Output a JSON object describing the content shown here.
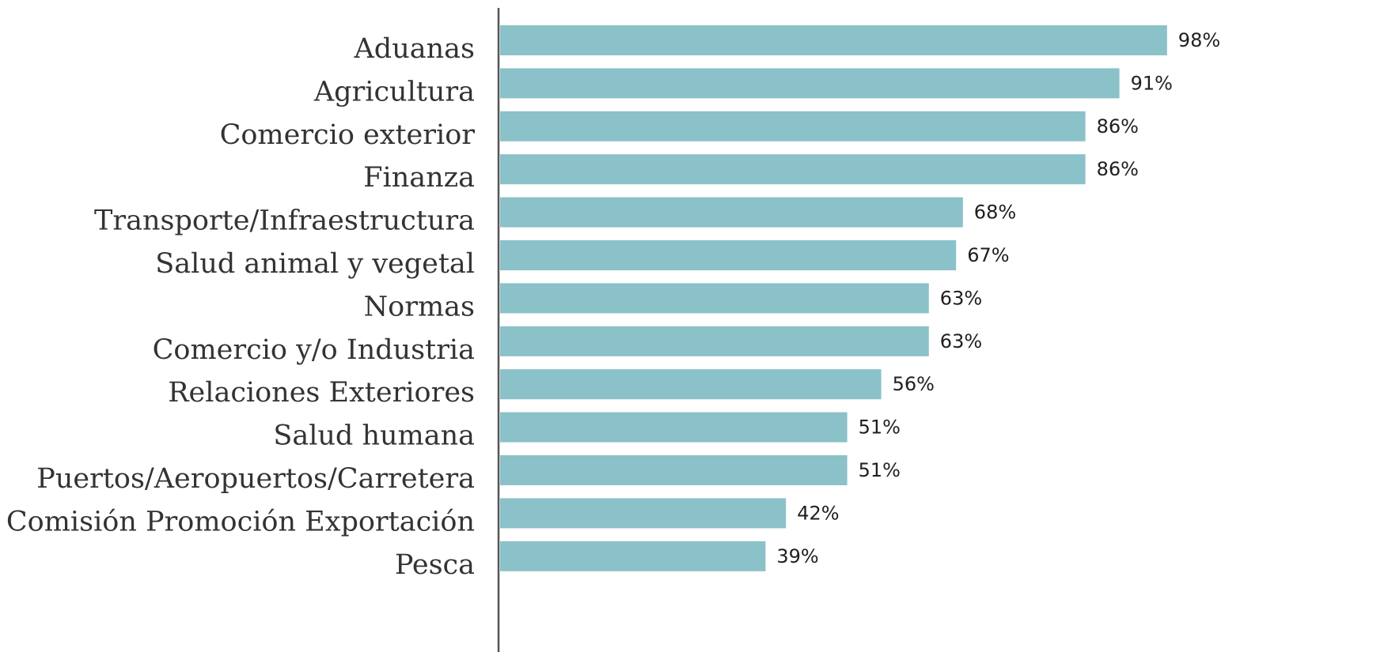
{
  "chart_data": {
    "type": "bar",
    "orientation": "horizontal",
    "categories": [
      "Aduanas",
      "Agricultura",
      "Comercio exterior",
      "Finanza",
      "Transporte/Infraestructura",
      "Salud animal y vegetal",
      "Normas",
      "Comercio y/o Industria",
      "Relaciones Exteriores",
      "Salud humana",
      "Puertos/Aeropuertos/Carretera",
      "Comisión Promoción Exportación",
      "Pesca"
    ],
    "values": [
      98,
      91,
      86,
      86,
      68,
      67,
      63,
      63,
      56,
      51,
      51,
      42,
      39
    ],
    "value_labels": [
      "98%",
      "91%",
      "86%",
      "86%",
      "68%",
      "67%",
      "63%",
      "63%",
      "56%",
      "51%",
      "51%",
      "42%",
      "39%"
    ],
    "unit": "%",
    "xlim": [
      0,
      100
    ],
    "grid": false,
    "bar_color": "#8bc1c8",
    "axis_color": "#555555",
    "title": "",
    "xlabel": "",
    "ylabel": ""
  }
}
